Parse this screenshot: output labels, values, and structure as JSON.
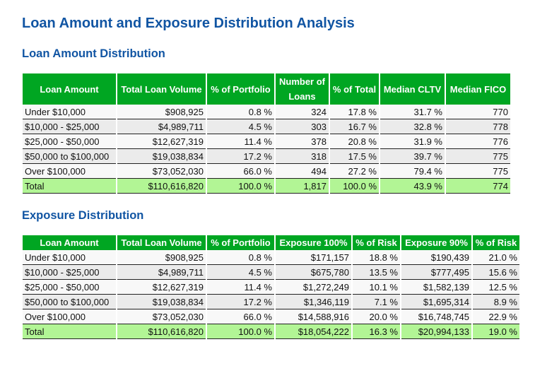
{
  "title": "Loan Amount and Exposure Distribution Analysis",
  "colors": {
    "header": "#00a622",
    "total_row": "#b2f595",
    "title": "#1155a3"
  },
  "loan_table": {
    "heading": "Loan Amount Distribution",
    "columns": [
      "Loan Amount",
      "Total Loan Volume",
      "% of Portfolio",
      "Number of Loans",
      "% of Total",
      "Median CLTV",
      "Median FICO"
    ],
    "rows": [
      [
        "Under $10,000",
        "$908,925",
        "0.8 %",
        "324",
        "17.8 %",
        "31.7 %",
        "770"
      ],
      [
        "$10,000 - $25,000",
        "$4,989,711",
        "4.5 %",
        "303",
        "16.7 %",
        "32.8 %",
        "778"
      ],
      [
        "$25,000 - $50,000",
        "$12,627,319",
        "11.4 %",
        "378",
        "20.8 %",
        "31.9 %",
        "776"
      ],
      [
        "$50,000 to $100,000",
        "$19,038,834",
        "17.2 %",
        "318",
        "17.5 %",
        "39.7 %",
        "775"
      ],
      [
        "Over $100,000",
        "$73,052,030",
        "66.0 %",
        "494",
        "27.2 %",
        "79.4 %",
        "775"
      ],
      [
        "Total",
        "$110,616,820",
        "100.0 %",
        "1,817",
        "100.0 %",
        "43.9 %",
        "774"
      ]
    ]
  },
  "exposure_table": {
    "heading": "Exposure Distribution",
    "columns": [
      "Loan Amount",
      "Total Loan Volume",
      "% of Portfolio",
      "Exposure 100%",
      "% of Risk",
      "Exposure 90%",
      "% of Risk"
    ],
    "rows": [
      [
        "Under $10,000",
        "$908,925",
        "0.8 %",
        "$171,157",
        "18.8 %",
        "$190,439",
        "21.0 %"
      ],
      [
        "$10,000 - $25,000",
        "$4,989,711",
        "4.5 %",
        "$675,780",
        "13.5 %",
        "$777,495",
        "15.6 %"
      ],
      [
        "$25,000 - $50,000",
        "$12,627,319",
        "11.4 %",
        "$1,272,249",
        "10.1 %",
        "$1,582,139",
        "12.5 %"
      ],
      [
        "$50,000 to $100,000",
        "$19,038,834",
        "17.2 %",
        "$1,346,119",
        "7.1 %",
        "$1,695,314",
        "8.9 %"
      ],
      [
        "Over $100,000",
        "$73,052,030",
        "66.0 %",
        "$14,588,916",
        "20.0 %",
        "$16,748,745",
        "22.9 %"
      ],
      [
        "Total",
        "$110,616,820",
        "100.0 %",
        "$18,054,222",
        "16.3 %",
        "$20,994,133",
        "19.0 %"
      ]
    ]
  }
}
